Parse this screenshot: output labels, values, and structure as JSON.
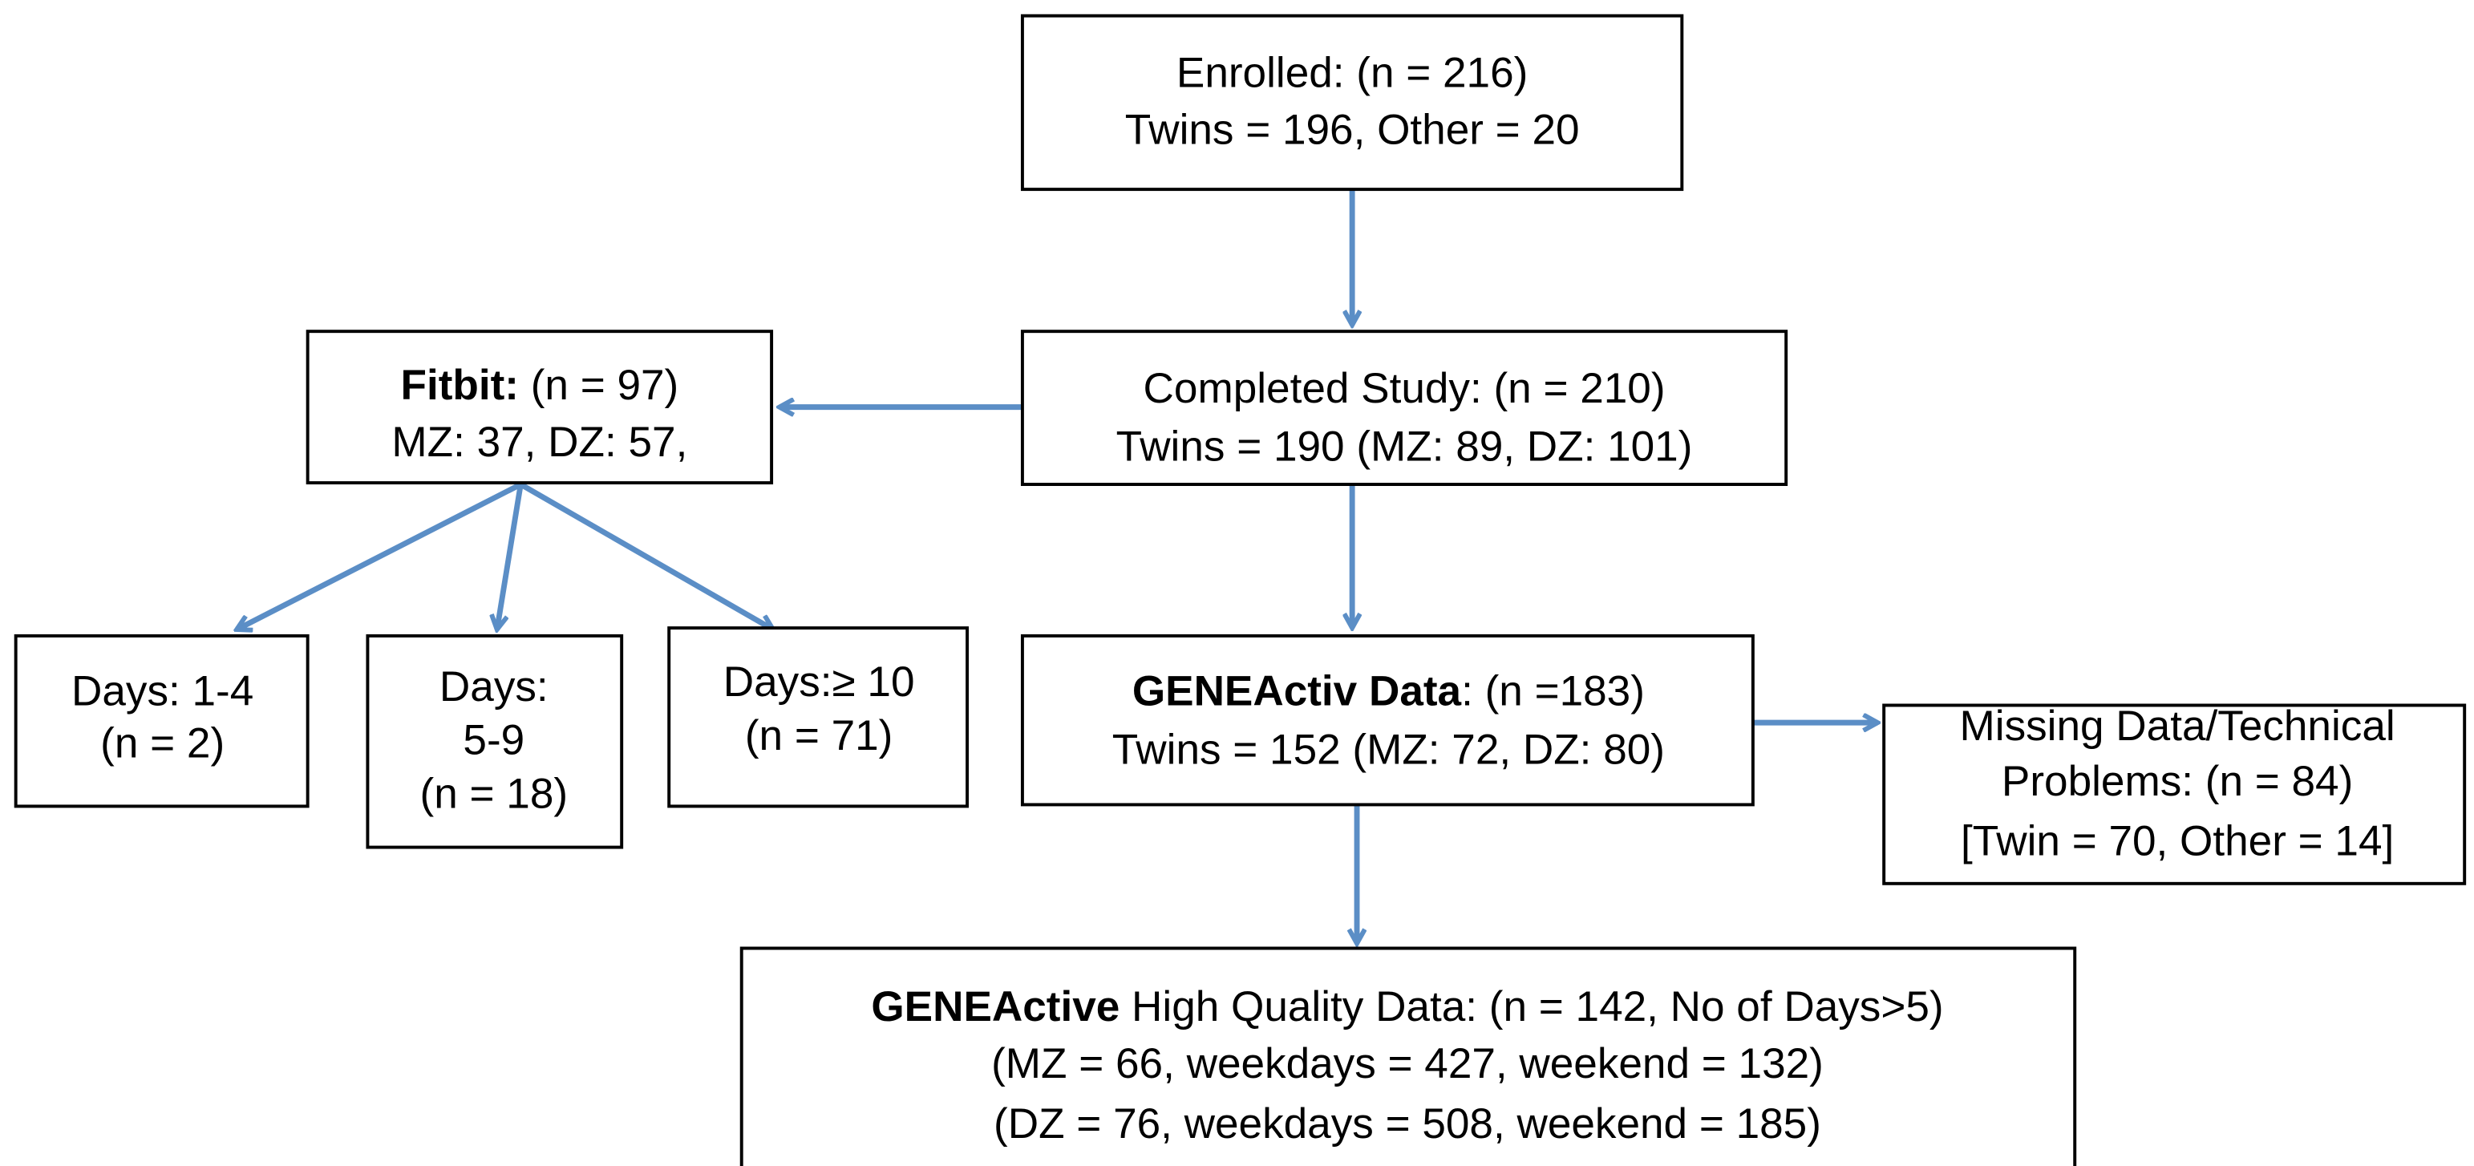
{
  "nodes": [
    {
      "lines": [
        {
          "text": "Enrolled: (n = 216)"
        },
        {
          "text": "Twins = 196, Other = 20"
        }
      ]
    },
    {
      "lines": [
        {
          "text": "Completed Study: (n = 210)"
        },
        {
          "text": "Twins = 190 (MZ: 89, DZ: 101)"
        }
      ]
    },
    {
      "lines": [
        {
          "bold": "Fitbit:",
          "text": " (n = 97)"
        },
        {
          "text": "MZ: 37, DZ: 57,"
        }
      ]
    },
    {
      "lines": [
        {
          "text": "Days: 1-4"
        },
        {
          "text": "(n = 2)"
        }
      ]
    },
    {
      "lines": [
        {
          "text": "Days:"
        },
        {
          "text": "5-9"
        },
        {
          "text": "(n = 18)"
        }
      ]
    },
    {
      "lines": [
        {
          "text": "Days:≥ 10"
        },
        {
          "text": "(n = 71)"
        }
      ]
    },
    {
      "lines": [
        {
          "bold": "GENEActiv Data",
          "text": ": (n =183)"
        },
        {
          "text": "Twins = 152 (MZ: 72, DZ: 80)"
        }
      ]
    },
    {
      "lines": [
        {
          "text": "Missing Data/Technical"
        },
        {
          "text": "Problems: (n = 84)"
        },
        {
          "text": "[Twin = 70, Other = 14]"
        }
      ]
    },
    {
      "lines": [
        {
          "bold": "GENEActive",
          "text": " High Quality Data: (n = 142, No of Days>5)"
        },
        {
          "text": "(MZ = 66, weekdays = 427, weekend = 132)"
        },
        {
          "text": "(DZ = 76, weekdays = 508, weekend = 185)"
        }
      ]
    }
  ]
}
